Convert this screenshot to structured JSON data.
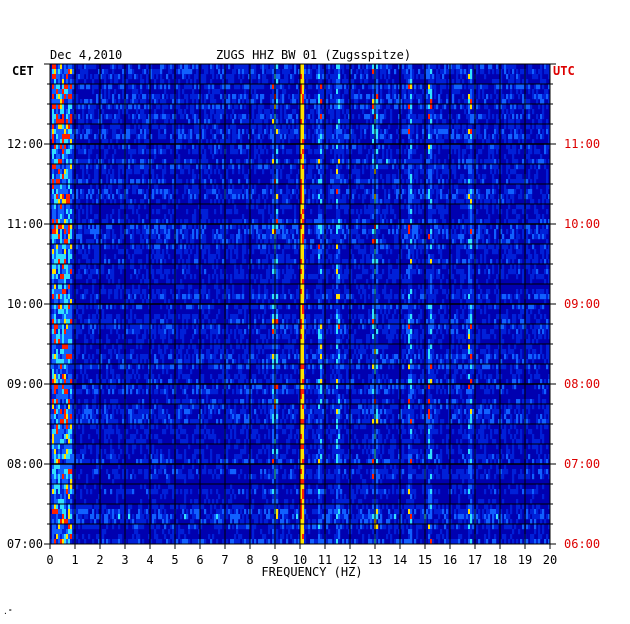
{
  "header": {
    "date": "Dec 4,2010",
    "station": "ZUGS HHZ BW 01 (Zugsspitze)"
  },
  "corner": "·˚",
  "chart_data": {
    "type": "heatmap",
    "title": "ZUGS HHZ BW 01 (Zugsspitze)",
    "date": "Dec 4,2010",
    "xlabel": "FREQUENCY (HZ)",
    "xlim": [
      0,
      20
    ],
    "x_ticks": [
      "0",
      "1",
      "2",
      "3",
      "4",
      "5",
      "6",
      "7",
      "8",
      "9",
      "10",
      "11",
      "12",
      "13",
      "14",
      "15",
      "16",
      "17",
      "18",
      "19",
      "20"
    ],
    "left_axis": {
      "label": "CET",
      "ticks": [
        "07:00",
        "08:00",
        "09:00",
        "10:00",
        "11:00",
        "12:00"
      ],
      "hours": [
        7,
        8,
        9,
        10,
        11,
        12
      ],
      "range_hours": [
        7,
        13
      ]
    },
    "right_axis": {
      "label": "UTC",
      "ticks": [
        "06:00",
        "07:00",
        "08:00",
        "09:00",
        "10:00",
        "11:00"
      ],
      "hours": [
        6,
        7,
        8,
        9,
        10,
        11
      ],
      "range_hours": [
        6,
        12
      ]
    },
    "grid": true,
    "colors": {
      "low": "#0000b0",
      "mid": "#1060ff",
      "high": "#30e0ff",
      "peak": "#ffe000",
      "max": "#ff2000",
      "grid": "#000000",
      "left_text": "#000000",
      "right_text": "#dd0000"
    },
    "spectral_features": {
      "strong_line_hz": 10.1,
      "secondary_lines_hz": [
        10.8,
        9.0,
        11.5,
        13.0,
        14.4,
        15.2,
        16.8
      ],
      "low_freq_band_hz": [
        0.1,
        0.9
      ]
    }
  }
}
